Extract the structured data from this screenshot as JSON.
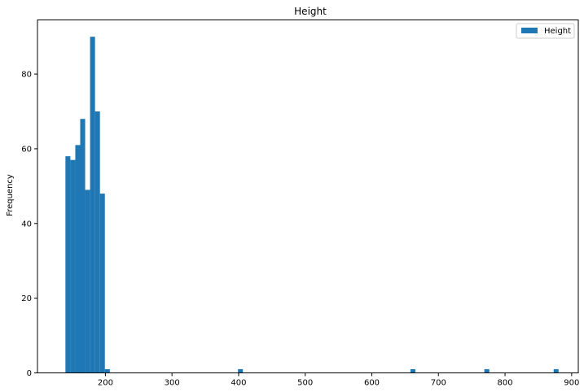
{
  "chart_data": {
    "type": "bar",
    "title": "Height",
    "xlabel": "",
    "ylabel": "Frequency",
    "xlim": [
      98,
      910
    ],
    "ylim": [
      0,
      94.5
    ],
    "xticks": [
      200,
      300,
      400,
      500,
      600,
      700,
      800,
      900
    ],
    "yticks": [
      0,
      20,
      40,
      60,
      80
    ],
    "bin_width": 7.4,
    "grid": false,
    "legend_position": "top-right",
    "series": [
      {
        "name": "Height",
        "color": "#1f77b4",
        "bins": [
          {
            "x0": 140.0,
            "count": 58
          },
          {
            "x0": 147.4,
            "count": 57
          },
          {
            "x0": 154.8,
            "count": 61
          },
          {
            "x0": 162.2,
            "count": 68
          },
          {
            "x0": 169.6,
            "count": 49
          },
          {
            "x0": 177.0,
            "count": 90
          },
          {
            "x0": 184.4,
            "count": 70
          },
          {
            "x0": 191.8,
            "count": 48
          },
          {
            "x0": 199.2,
            "count": 1
          },
          {
            "x0": 399.0,
            "count": 1
          },
          {
            "x0": 658.0,
            "count": 1
          },
          {
            "x0": 769.0,
            "count": 1
          },
          {
            "x0": 873.0,
            "count": 1
          }
        ]
      }
    ]
  }
}
